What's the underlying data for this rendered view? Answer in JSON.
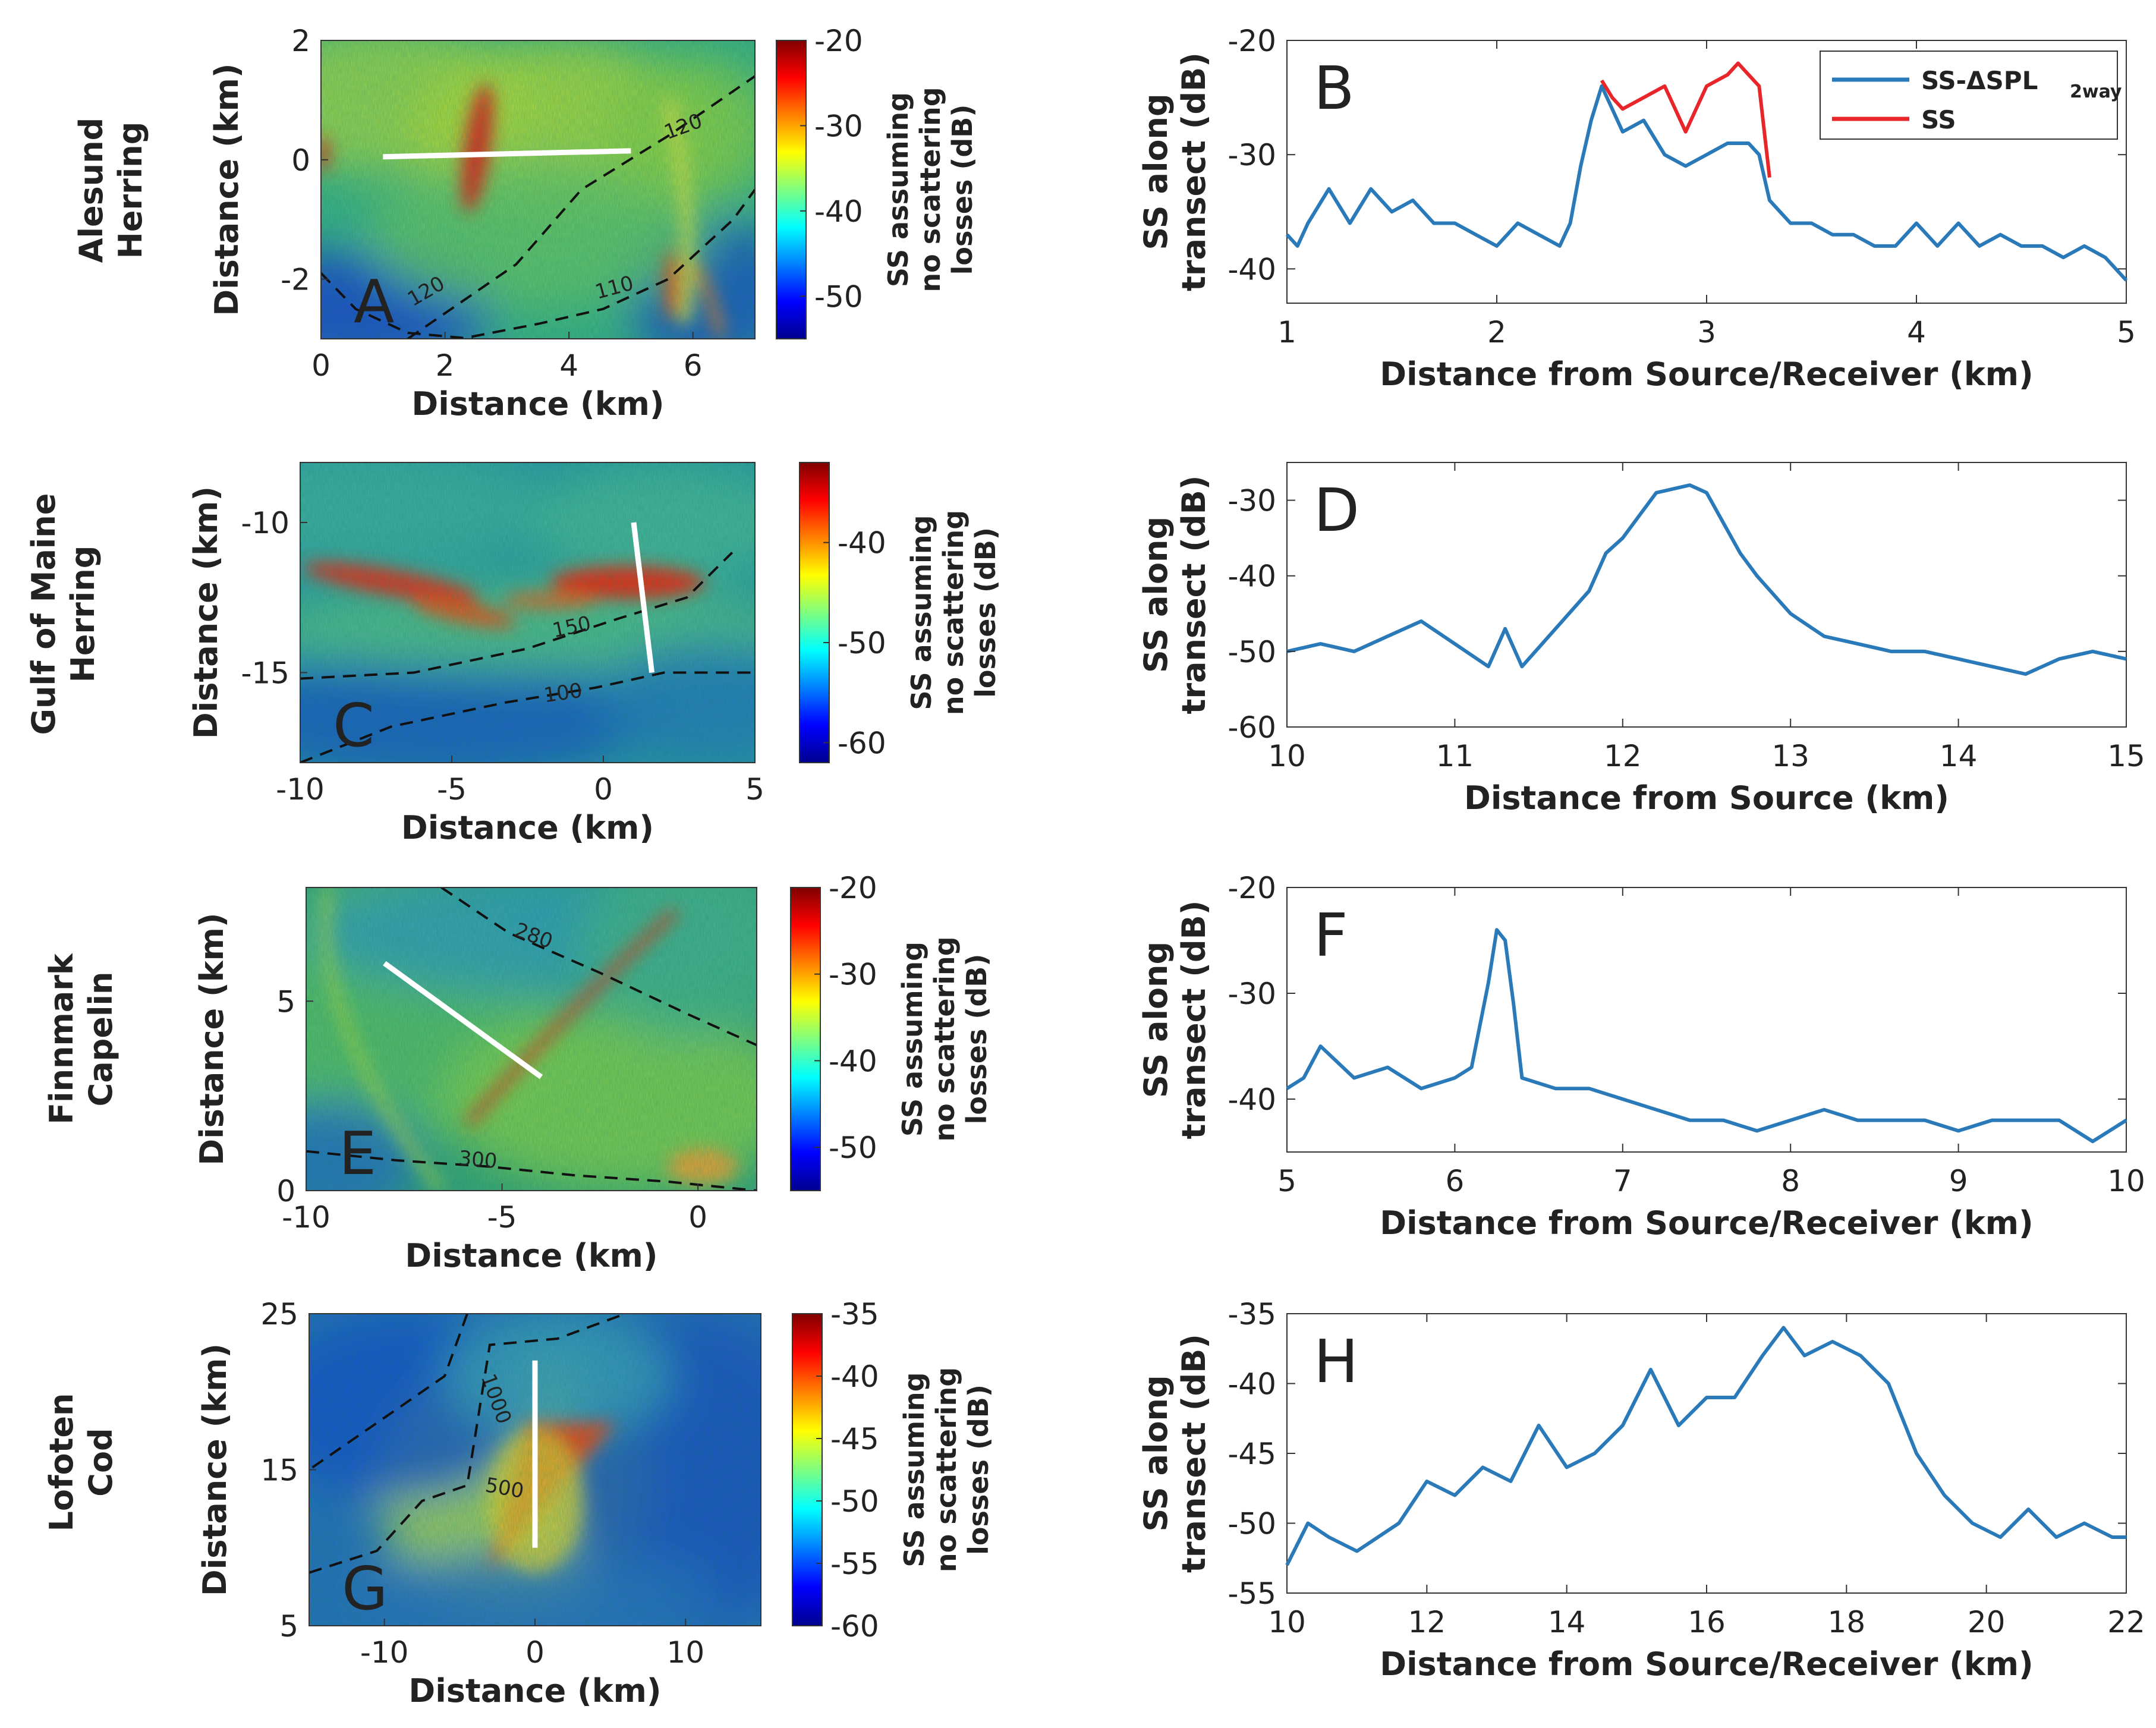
{
  "rows": [
    {
      "label": [
        "Alesund",
        "Herring"
      ]
    },
    {
      "label": [
        "Gulf of Maine",
        "Herring"
      ]
    },
    {
      "label": [
        "Finnmark",
        "Capelin"
      ]
    },
    {
      "label": [
        "Lofoten",
        "Cod"
      ]
    }
  ],
  "maps": [
    {
      "letter": "A",
      "xlabel": "Distance (km)",
      "ylabel": "Distance (km)",
      "xlim": [
        0,
        7
      ],
      "ylim": [
        -3,
        2
      ],
      "xticks": [
        "0",
        "2",
        "4",
        "6"
      ],
      "xtickvals": [
        0,
        2,
        4,
        6
      ],
      "yticks": [
        "2",
        "0",
        "-2"
      ],
      "ytickvals": [
        2,
        0,
        -2
      ],
      "colorbar": {
        "label": [
          "SS assuming",
          "no scattering",
          "losses (dB)"
        ],
        "range": [
          -55,
          -20
        ],
        "ticks": [
          "-20",
          "-30",
          "-40",
          "-50"
        ],
        "tickvals": [
          -20,
          -30,
          -40,
          -50
        ]
      },
      "contours": [
        "120",
        "120",
        "110"
      ],
      "transect": {
        "x": [
          1,
          5
        ],
        "y": [
          0.05,
          0.15
        ]
      }
    },
    {
      "letter": "C",
      "xlabel": "Distance (km)",
      "ylabel": "Distance (km)",
      "xlim": [
        -10,
        5
      ],
      "ylim": [
        -18,
        -8
      ],
      "xticks": [
        "-10",
        "-5",
        "0",
        "5"
      ],
      "xtickvals": [
        -10,
        -5,
        0,
        5
      ],
      "yticks": [
        "-10",
        "-15"
      ],
      "ytickvals": [
        -10,
        -15
      ],
      "colorbar": {
        "label": [
          "SS assuming",
          "no scattering",
          "losses (dB)"
        ],
        "range": [
          -62,
          -32
        ],
        "ticks": [
          "-40",
          "-50",
          "-60"
        ],
        "tickvals": [
          -40,
          -50,
          -60
        ]
      },
      "contours": [
        "150",
        "100"
      ],
      "transect": {
        "x": [
          1,
          1.6
        ],
        "y": [
          -10,
          -15
        ]
      }
    },
    {
      "letter": "E",
      "xlabel": "Distance (km)",
      "ylabel": "Distance (km)",
      "xlim": [
        -10,
        1.5
      ],
      "ylim": [
        0,
        8
      ],
      "xticks": [
        "-10",
        "-5",
        "0"
      ],
      "xtickvals": [
        -10,
        -5,
        0
      ],
      "yticks": [
        "5",
        "0"
      ],
      "ytickvals": [
        5,
        0
      ],
      "colorbar": {
        "label": [
          "SS assuming",
          "no scattering",
          "losses (dB)"
        ],
        "range": [
          -55,
          -20
        ],
        "ticks": [
          "-20",
          "-30",
          "-40",
          "-50"
        ],
        "tickvals": [
          -20,
          -30,
          -40,
          -50
        ]
      },
      "contours": [
        "280",
        "300"
      ],
      "transect": {
        "x": [
          -8,
          -4
        ],
        "y": [
          6,
          3
        ]
      }
    },
    {
      "letter": "G",
      "xlabel": "Distance (km)",
      "ylabel": "Distance (km)",
      "xlim": [
        -15,
        15
      ],
      "ylim": [
        5,
        25
      ],
      "xticks": [
        "-10",
        "0",
        "10"
      ],
      "xtickvals": [
        -10,
        0,
        10
      ],
      "yticks": [
        "25",
        "15",
        "5"
      ],
      "ytickvals": [
        25,
        15,
        5
      ],
      "colorbar": {
        "label": [
          "SS assuming",
          "no scattering",
          "losses (dB)"
        ],
        "range": [
          -60,
          -35
        ],
        "ticks": [
          "-35",
          "-40",
          "-45",
          "-50",
          "-55",
          "-60"
        ],
        "tickvals": [
          -35,
          -40,
          -45,
          -50,
          -55,
          -60
        ]
      },
      "contours": [
        "1000",
        "500"
      ],
      "transect": {
        "x": [
          0,
          0
        ],
        "y": [
          10,
          22
        ]
      }
    }
  ],
  "chart_data": [
    {
      "type": "line",
      "letter": "B",
      "xlabel": "Distance from Source/Receiver (km)",
      "ylabel": [
        "SS along",
        "transect (dB)"
      ],
      "xlim": [
        1,
        5
      ],
      "ylim": [
        -43,
        -20
      ],
      "xticks": [
        "1",
        "2",
        "3",
        "4",
        "5"
      ],
      "xtickvals": [
        1,
        2,
        3,
        4,
        5
      ],
      "yticks": [
        "-20",
        "-30",
        "-40"
      ],
      "ytickvals": [
        -20,
        -30,
        -40
      ],
      "legend": {
        "position": "top-right",
        "entries": [
          "SS-ΔSPL",
          "SS"
        ],
        "sub": "2way"
      },
      "series": [
        {
          "name": "SS-ΔSPL 2way",
          "color": "#2a7ab9",
          "x": [
            1.0,
            1.05,
            1.1,
            1.2,
            1.3,
            1.4,
            1.5,
            1.6,
            1.7,
            1.8,
            1.9,
            2.0,
            2.1,
            2.2,
            2.3,
            2.35,
            2.4,
            2.45,
            2.5,
            2.55,
            2.6,
            2.7,
            2.8,
            2.9,
            3.0,
            3.1,
            3.2,
            3.25,
            3.3,
            3.35,
            3.4,
            3.5,
            3.6,
            3.7,
            3.8,
            3.9,
            4.0,
            4.1,
            4.2,
            4.3,
            4.4,
            4.5,
            4.6,
            4.7,
            4.8,
            4.9,
            5.0
          ],
          "y": [
            -37,
            -38,
            -36,
            -33,
            -36,
            -33,
            -35,
            -34,
            -36,
            -36,
            -37,
            -38,
            -36,
            -37,
            -38,
            -36,
            -31,
            -27,
            -24,
            -26,
            -28,
            -27,
            -30,
            -31,
            -30,
            -29,
            -29,
            -30,
            -34,
            -35,
            -36,
            -36,
            -37,
            -37,
            -38,
            -38,
            -36,
            -38,
            -36,
            -38,
            -37,
            -38,
            -38,
            -39,
            -38,
            -39,
            -41
          ]
        },
        {
          "name": "SS",
          "color": "#e8262a",
          "x": [
            2.5,
            2.55,
            2.6,
            2.7,
            2.8,
            2.85,
            2.9,
            3.0,
            3.1,
            3.15,
            3.2,
            3.25,
            3.3
          ],
          "y": [
            -23.5,
            -25,
            -26,
            -25,
            -24,
            -26,
            -28,
            -24,
            -23,
            -22,
            -23,
            -24,
            -32
          ]
        }
      ]
    },
    {
      "type": "line",
      "letter": "D",
      "xlabel": "Distance from Source (km)",
      "ylabel": [
        "SS along",
        "transect (dB)"
      ],
      "xlim": [
        10,
        15
      ],
      "ylim": [
        -60,
        -25
      ],
      "xticks": [
        "10",
        "11",
        "12",
        "13",
        "14",
        "15"
      ],
      "xtickvals": [
        10,
        11,
        12,
        13,
        14,
        15
      ],
      "yticks": [
        "-30",
        "-40",
        "-50",
        "-60"
      ],
      "ytickvals": [
        -30,
        -40,
        -50,
        -60
      ],
      "series": [
        {
          "name": "SS",
          "color": "#2a7ab9",
          "x": [
            10.0,
            10.2,
            10.4,
            10.6,
            10.8,
            11.0,
            11.2,
            11.3,
            11.4,
            11.6,
            11.8,
            11.9,
            12.0,
            12.1,
            12.2,
            12.4,
            12.5,
            12.6,
            12.7,
            12.8,
            13.0,
            13.2,
            13.4,
            13.6,
            13.8,
            14.0,
            14.2,
            14.4,
            14.6,
            14.8,
            15.0
          ],
          "y": [
            -50,
            -49,
            -50,
            -48,
            -46,
            -49,
            -52,
            -47,
            -52,
            -47,
            -42,
            -37,
            -35,
            -32,
            -29,
            -28,
            -29,
            -33,
            -37,
            -40,
            -45,
            -48,
            -49,
            -50,
            -50,
            -51,
            -52,
            -53,
            -51,
            -50,
            -51
          ]
        }
      ]
    },
    {
      "type": "line",
      "letter": "F",
      "xlabel": "Distance from Source/Receiver (km)",
      "ylabel": [
        "SS along",
        "transect (dB)"
      ],
      "xlim": [
        5,
        10
      ],
      "ylim": [
        -45,
        -20
      ],
      "xticks": [
        "5",
        "6",
        "7",
        "8",
        "9",
        "10"
      ],
      "xtickvals": [
        5,
        6,
        7,
        8,
        9,
        10
      ],
      "yticks": [
        "-20",
        "-30",
        "-40"
      ],
      "ytickvals": [
        -20,
        -30,
        -40
      ],
      "series": [
        {
          "name": "SS",
          "color": "#2a7ab9",
          "x": [
            5.0,
            5.1,
            5.2,
            5.4,
            5.6,
            5.8,
            6.0,
            6.1,
            6.2,
            6.25,
            6.3,
            6.35,
            6.4,
            6.6,
            6.8,
            7.0,
            7.2,
            7.4,
            7.6,
            7.8,
            8.0,
            8.2,
            8.4,
            8.6,
            8.8,
            9.0,
            9.2,
            9.4,
            9.6,
            9.8,
            10.0
          ],
          "y": [
            -39,
            -38,
            -35,
            -38,
            -37,
            -39,
            -38,
            -37,
            -29,
            -24,
            -25,
            -31,
            -38,
            -39,
            -39,
            -40,
            -41,
            -42,
            -42,
            -43,
            -42,
            -41,
            -42,
            -42,
            -42,
            -43,
            -42,
            -42,
            -42,
            -44,
            -42
          ]
        }
      ]
    },
    {
      "type": "line",
      "letter": "H",
      "xlabel": "Distance from Source/Receiver (km)",
      "ylabel": [
        "SS along",
        "transect (dB)"
      ],
      "xlim": [
        10,
        22
      ],
      "ylim": [
        -55,
        -35
      ],
      "xticks": [
        "10",
        "12",
        "14",
        "16",
        "18",
        "20",
        "22"
      ],
      "xtickvals": [
        10,
        12,
        14,
        16,
        18,
        20,
        22
      ],
      "yticks": [
        "-35",
        "-40",
        "-45",
        "-50",
        "-55"
      ],
      "ytickvals": [
        -35,
        -40,
        -45,
        -50,
        -55
      ],
      "series": [
        {
          "name": "SS",
          "color": "#2a7ab9",
          "x": [
            10.0,
            10.3,
            10.6,
            11.0,
            11.3,
            11.6,
            12.0,
            12.4,
            12.8,
            13.2,
            13.6,
            14.0,
            14.4,
            14.8,
            15.2,
            15.6,
            16.0,
            16.4,
            16.8,
            17.1,
            17.4,
            17.8,
            18.2,
            18.6,
            19.0,
            19.4,
            19.8,
            20.2,
            20.6,
            21.0,
            21.4,
            21.8,
            22.0
          ],
          "y": [
            -53,
            -50,
            -51,
            -52,
            -51,
            -50,
            -47,
            -48,
            -46,
            -47,
            -43,
            -46,
            -45,
            -43,
            -39,
            -43,
            -41,
            -41,
            -38,
            -36,
            -38,
            -37,
            -38,
            -40,
            -45,
            -48,
            -50,
            -51,
            -49,
            -51,
            -50,
            -51,
            -51
          ]
        }
      ]
    }
  ]
}
